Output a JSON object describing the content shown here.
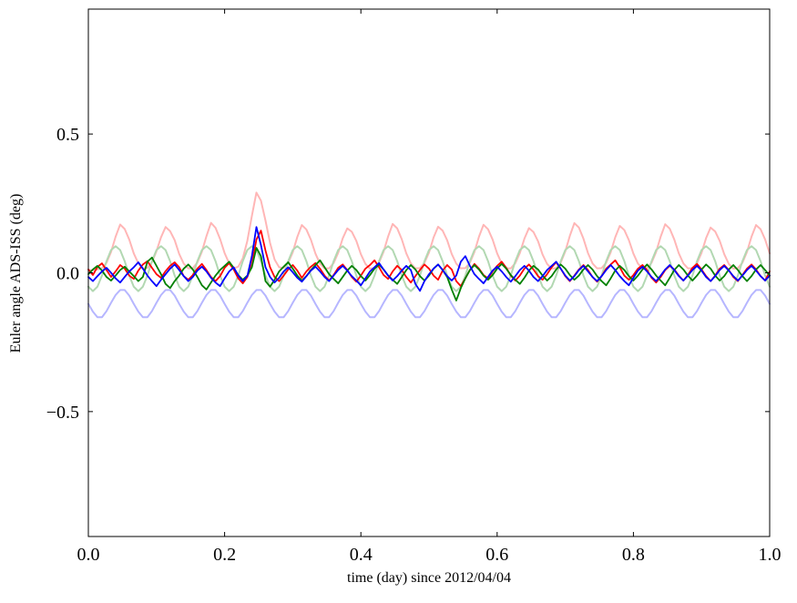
{
  "figure": {
    "background": "#ffffff",
    "frame_color": "#000000"
  },
  "chart_data": {
    "type": "line",
    "title": "",
    "xlabel": "time (day) since 2012/04/04",
    "ylabel": "Euler angle ADS-ISS (deg)",
    "xlim": [
      0.0,
      1.0
    ],
    "ylim": [
      -0.95,
      0.95
    ],
    "grid": false,
    "legend": false,
    "xticks": {
      "values": [
        0.0,
        0.2,
        0.4,
        0.6,
        0.8,
        1.0
      ],
      "labels": [
        "0.0",
        "0.2",
        "0.4",
        "0.6",
        "0.8",
        "1.0"
      ]
    },
    "yticks": {
      "values": [
        -0.5,
        0.0,
        0.5
      ],
      "labels": [
        "−0.5",
        "0.0",
        "0.5"
      ]
    },
    "x_points": {
      "start": 0.0,
      "end": 1.0,
      "count": 151,
      "note": "evenly spaced time samples, fraction of day"
    },
    "series": [
      {
        "name": "pale-red",
        "color": "#ffb6b6",
        "width": 2.0,
        "values": [
          0.01,
          0.01,
          0.012,
          0.017,
          0.036,
          0.075,
          0.13,
          0.174,
          0.158,
          0.12,
          0.07,
          0.034,
          0.016,
          0.018,
          0.038,
          0.078,
          0.128,
          0.165,
          0.15,
          0.118,
          0.068,
          0.033,
          0.016,
          0.017,
          0.037,
          0.076,
          0.132,
          0.18,
          0.162,
          0.122,
          0.071,
          0.034,
          0.016,
          0.022,
          0.052,
          0.115,
          0.205,
          0.289,
          0.26,
          0.188,
          0.108,
          0.048,
          0.02,
          0.017,
          0.036,
          0.074,
          0.129,
          0.172,
          0.156,
          0.119,
          0.069,
          0.033,
          0.016,
          0.016,
          0.035,
          0.072,
          0.124,
          0.16,
          0.148,
          0.115,
          0.067,
          0.032,
          0.015,
          0.017,
          0.037,
          0.076,
          0.131,
          0.176,
          0.16,
          0.121,
          0.07,
          0.034,
          0.016,
          0.017,
          0.036,
          0.073,
          0.127,
          0.166,
          0.152,
          0.117,
          0.068,
          0.033,
          0.016,
          0.017,
          0.036,
          0.075,
          0.13,
          0.173,
          0.157,
          0.12,
          0.07,
          0.034,
          0.016,
          0.016,
          0.035,
          0.071,
          0.123,
          0.161,
          0.147,
          0.114,
          0.066,
          0.032,
          0.015,
          0.017,
          0.037,
          0.077,
          0.133,
          0.179,
          0.163,
          0.123,
          0.071,
          0.034,
          0.016,
          0.017,
          0.036,
          0.074,
          0.128,
          0.169,
          0.154,
          0.118,
          0.069,
          0.033,
          0.016,
          0.017,
          0.036,
          0.075,
          0.13,
          0.175,
          0.159,
          0.12,
          0.07,
          0.034,
          0.016,
          0.016,
          0.035,
          0.072,
          0.125,
          0.163,
          0.149,
          0.115,
          0.067,
          0.032,
          0.015,
          0.017,
          0.036,
          0.075,
          0.13,
          0.172,
          0.157,
          0.12,
          0.07
        ]
      },
      {
        "name": "pale-green",
        "color": "#b2d8b2",
        "width": 2.0,
        "values": [
          -0.05,
          -0.066,
          -0.05,
          -0.01,
          0.042,
          0.082,
          0.096,
          0.082,
          0.042,
          -0.01,
          -0.05,
          -0.066,
          -0.05,
          -0.01,
          0.042,
          0.082,
          0.096,
          0.082,
          0.042,
          -0.01,
          -0.05,
          -0.066,
          -0.05,
          -0.01,
          0.042,
          0.082,
          0.096,
          0.082,
          0.042,
          -0.01,
          -0.05,
          -0.066,
          -0.05,
          -0.01,
          0.042,
          0.082,
          0.096,
          0.082,
          0.042,
          -0.01,
          -0.05,
          -0.066,
          -0.05,
          -0.01,
          0.042,
          0.082,
          0.096,
          0.082,
          0.042,
          -0.01,
          -0.05,
          -0.066,
          -0.05,
          -0.01,
          0.042,
          0.082,
          0.096,
          0.082,
          0.042,
          -0.01,
          -0.05,
          -0.066,
          -0.05,
          -0.01,
          0.042,
          0.082,
          0.096,
          0.082,
          0.042,
          -0.01,
          -0.05,
          -0.066,
          -0.05,
          -0.01,
          0.042,
          0.082,
          0.096,
          0.082,
          0.042,
          -0.01,
          -0.05,
          -0.066,
          -0.05,
          -0.01,
          0.042,
          0.082,
          0.096,
          0.082,
          0.042,
          -0.01,
          -0.05,
          -0.066,
          -0.05,
          -0.01,
          0.042,
          0.082,
          0.096,
          0.082,
          0.042,
          -0.01,
          -0.05,
          -0.066,
          -0.05,
          -0.01,
          0.042,
          0.082,
          0.096,
          0.082,
          0.042,
          -0.01,
          -0.05,
          -0.066,
          -0.05,
          -0.01,
          0.042,
          0.082,
          0.096,
          0.082,
          0.042,
          -0.01,
          -0.05,
          -0.066,
          -0.05,
          -0.01,
          0.042,
          0.082,
          0.096,
          0.082,
          0.042,
          -0.01,
          -0.05,
          -0.066,
          -0.05,
          -0.01,
          0.042,
          0.082,
          0.096,
          0.082,
          0.042,
          -0.01,
          -0.05,
          -0.066,
          -0.05,
          -0.01,
          0.042,
          0.082,
          0.096,
          0.082,
          0.042,
          -0.01,
          -0.05
        ]
      },
      {
        "name": "pale-blue",
        "color": "#b6b6ff",
        "width": 2.0,
        "values": [
          -0.112,
          -0.14,
          -0.16,
          -0.16,
          -0.138,
          -0.108,
          -0.08,
          -0.062,
          -0.062,
          -0.082,
          -0.112,
          -0.14,
          -0.16,
          -0.16,
          -0.138,
          -0.108,
          -0.08,
          -0.062,
          -0.062,
          -0.082,
          -0.112,
          -0.14,
          -0.16,
          -0.16,
          -0.138,
          -0.108,
          -0.08,
          -0.062,
          -0.062,
          -0.082,
          -0.112,
          -0.14,
          -0.16,
          -0.16,
          -0.138,
          -0.108,
          -0.08,
          -0.062,
          -0.062,
          -0.082,
          -0.112,
          -0.14,
          -0.16,
          -0.16,
          -0.138,
          -0.108,
          -0.08,
          -0.062,
          -0.062,
          -0.082,
          -0.112,
          -0.14,
          -0.16,
          -0.16,
          -0.138,
          -0.108,
          -0.08,
          -0.062,
          -0.062,
          -0.082,
          -0.112,
          -0.14,
          -0.16,
          -0.16,
          -0.138,
          -0.108,
          -0.08,
          -0.062,
          -0.062,
          -0.082,
          -0.112,
          -0.14,
          -0.16,
          -0.16,
          -0.138,
          -0.108,
          -0.08,
          -0.062,
          -0.062,
          -0.082,
          -0.112,
          -0.14,
          -0.16,
          -0.16,
          -0.138,
          -0.108,
          -0.08,
          -0.062,
          -0.062,
          -0.082,
          -0.112,
          -0.14,
          -0.16,
          -0.16,
          -0.138,
          -0.108,
          -0.08,
          -0.062,
          -0.062,
          -0.082,
          -0.112,
          -0.14,
          -0.16,
          -0.16,
          -0.138,
          -0.108,
          -0.08,
          -0.062,
          -0.062,
          -0.082,
          -0.112,
          -0.14,
          -0.16,
          -0.16,
          -0.138,
          -0.108,
          -0.08,
          -0.062,
          -0.062,
          -0.082,
          -0.112,
          -0.14,
          -0.16,
          -0.16,
          -0.138,
          -0.108,
          -0.08,
          -0.062,
          -0.062,
          -0.082,
          -0.112,
          -0.14,
          -0.16,
          -0.16,
          -0.138,
          -0.108,
          -0.08,
          -0.062,
          -0.062,
          -0.082,
          -0.112,
          -0.14,
          -0.16,
          -0.16,
          -0.138,
          -0.108,
          -0.08,
          -0.062,
          -0.062,
          -0.082,
          -0.112
        ]
      },
      {
        "name": "red",
        "color": "#ff0000",
        "width": 1.8,
        "values": [
          0.012,
          -0.008,
          0.021,
          0.034,
          0.01,
          -0.015,
          0.005,
          0.028,
          0.015,
          -0.01,
          -0.022,
          0.008,
          0.03,
          0.042,
          0.018,
          -0.005,
          -0.018,
          0.006,
          0.025,
          0.038,
          0.02,
          -0.012,
          -0.025,
          -0.008,
          0.015,
          0.032,
          0.01,
          -0.015,
          -0.03,
          -0.012,
          0.018,
          0.035,
          0.012,
          -0.02,
          -0.038,
          -0.015,
          0.03,
          0.12,
          0.152,
          0.08,
          0.02,
          -0.015,
          -0.03,
          -0.01,
          0.012,
          0.028,
          0.008,
          -0.018,
          0.005,
          0.022,
          0.035,
          0.015,
          -0.01,
          -0.028,
          -0.008,
          0.018,
          0.03,
          0.01,
          -0.015,
          -0.032,
          -0.01,
          0.015,
          0.028,
          0.045,
          0.02,
          -0.008,
          -0.022,
          0.005,
          0.025,
          0.01,
          -0.015,
          -0.035,
          -0.012,
          0.01,
          0.03,
          0.015,
          -0.01,
          -0.025,
          0.008,
          0.028,
          0.012,
          -0.03,
          -0.048,
          -0.02,
          0.01,
          0.032,
          0.015,
          -0.008,
          -0.02,
          0.005,
          0.025,
          0.04,
          0.018,
          -0.01,
          -0.028,
          -0.01,
          0.015,
          0.03,
          0.012,
          -0.012,
          -0.025,
          -0.005,
          0.02,
          0.038,
          0.015,
          -0.012,
          -0.03,
          -0.01,
          0.012,
          0.028,
          0.01,
          -0.015,
          -0.032,
          -0.012,
          0.015,
          0.03,
          0.045,
          0.02,
          -0.01,
          -0.025,
          -0.008,
          0.015,
          0.028,
          0.01,
          -0.018,
          -0.035,
          -0.015,
          0.01,
          0.025,
          0.012,
          -0.01,
          -0.028,
          -0.008,
          0.018,
          0.032,
          0.012,
          -0.012,
          -0.03,
          -0.01,
          0.015,
          0.028,
          0.01,
          -0.015,
          -0.03,
          -0.008,
          0.015,
          0.03,
          0.012,
          -0.012,
          -0.028,
          0.005
        ]
      },
      {
        "name": "green",
        "color": "#008000",
        "width": 1.8,
        "values": [
          -0.005,
          0.012,
          0.025,
          0.008,
          -0.015,
          -0.028,
          -0.01,
          0.01,
          0.022,
          0.005,
          -0.012,
          -0.03,
          -0.015,
          0.04,
          0.055,
          0.025,
          -0.005,
          -0.04,
          -0.055,
          -0.03,
          -0.01,
          0.015,
          0.03,
          0.012,
          -0.015,
          -0.045,
          -0.06,
          -0.035,
          -0.01,
          0.01,
          0.025,
          0.04,
          0.018,
          -0.008,
          -0.025,
          -0.01,
          0.02,
          0.09,
          0.06,
          -0.03,
          -0.05,
          -0.025,
          0.005,
          0.022,
          0.038,
          0.015,
          -0.01,
          -0.028,
          -0.012,
          0.01,
          0.028,
          0.045,
          0.02,
          -0.005,
          -0.022,
          -0.038,
          -0.015,
          0.008,
          0.025,
          0.01,
          -0.012,
          -0.028,
          -0.008,
          0.015,
          0.03,
          0.012,
          -0.01,
          -0.025,
          -0.04,
          -0.015,
          0.01,
          0.028,
          0.012,
          -0.012,
          -0.028,
          -0.01,
          0.015,
          0.03,
          0.01,
          -0.015,
          -0.06,
          -0.1,
          -0.055,
          -0.02,
          0.01,
          0.028,
          0.012,
          -0.01,
          -0.025,
          -0.008,
          0.015,
          0.032,
          0.015,
          -0.008,
          -0.025,
          -0.04,
          -0.018,
          0.008,
          0.025,
          0.012,
          -0.01,
          -0.028,
          -0.012,
          0.012,
          0.03,
          0.015,
          -0.008,
          -0.025,
          -0.01,
          0.012,
          0.028,
          0.012,
          -0.012,
          -0.03,
          -0.045,
          -0.02,
          0.008,
          0.025,
          0.01,
          -0.012,
          -0.028,
          -0.01,
          0.012,
          0.03,
          0.012,
          -0.01,
          -0.028,
          -0.045,
          -0.018,
          0.01,
          0.028,
          0.012,
          -0.01,
          -0.028,
          -0.01,
          0.012,
          0.03,
          0.015,
          -0.01,
          -0.028,
          -0.012,
          0.012,
          0.028,
          0.01,
          -0.012,
          -0.03,
          -0.012,
          0.012,
          0.028,
          0.01,
          -0.01
        ]
      },
      {
        "name": "blue",
        "color": "#0000ff",
        "width": 1.8,
        "values": [
          -0.015,
          -0.03,
          -0.012,
          0.005,
          0.018,
          0.0,
          -0.02,
          -0.035,
          -0.015,
          0.005,
          0.02,
          0.038,
          0.015,
          -0.01,
          -0.03,
          -0.048,
          -0.025,
          -0.005,
          0.015,
          0.03,
          0.01,
          -0.012,
          -0.03,
          -0.015,
          0.008,
          0.022,
          0.005,
          -0.018,
          -0.035,
          -0.048,
          -0.02,
          0.005,
          0.02,
          -0.01,
          -0.03,
          -0.012,
          0.06,
          0.165,
          0.1,
          0.02,
          -0.015,
          -0.035,
          -0.018,
          0.005,
          0.02,
          0.002,
          -0.018,
          -0.032,
          -0.012,
          0.008,
          0.022,
          0.005,
          -0.015,
          -0.03,
          -0.01,
          0.01,
          0.025,
          0.008,
          -0.012,
          -0.028,
          -0.045,
          -0.02,
          0.005,
          0.02,
          0.035,
          0.012,
          -0.01,
          -0.028,
          -0.012,
          0.008,
          0.025,
          0.01,
          -0.04,
          -0.065,
          -0.03,
          -0.005,
          0.015,
          0.03,
          0.01,
          -0.012,
          -0.028,
          -0.01,
          0.04,
          0.06,
          0.025,
          -0.005,
          -0.022,
          -0.038,
          -0.015,
          0.008,
          0.022,
          0.005,
          -0.015,
          -0.032,
          -0.012,
          0.01,
          0.025,
          0.008,
          -0.015,
          -0.03,
          -0.012,
          0.01,
          0.025,
          0.04,
          0.015,
          -0.01,
          -0.028,
          -0.012,
          0.01,
          0.025,
          0.005,
          -0.015,
          -0.03,
          -0.012,
          0.01,
          0.028,
          0.01,
          -0.012,
          -0.03,
          -0.045,
          -0.018,
          0.008,
          0.022,
          0.005,
          -0.015,
          -0.03,
          -0.01,
          0.012,
          0.028,
          0.01,
          -0.012,
          -0.028,
          -0.01,
          0.01,
          0.025,
          0.008,
          -0.015,
          -0.03,
          -0.012,
          0.01,
          0.025,
          0.008,
          -0.012,
          -0.028,
          -0.01,
          0.01,
          0.025,
          0.008,
          -0.012,
          -0.028,
          -0.01
        ]
      }
    ]
  }
}
